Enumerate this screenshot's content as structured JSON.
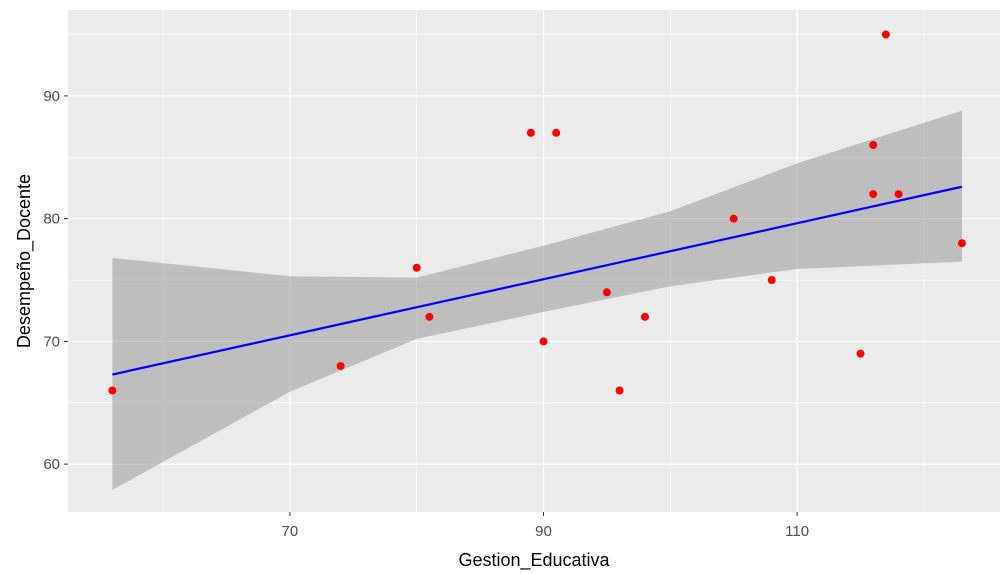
{
  "chart_data": {
    "type": "scatter",
    "xlabel": "Gestion_Educativa",
    "ylabel": "Desempeño_Docente",
    "xlim": [
      52.5,
      126
    ],
    "ylim": [
      56.1,
      97.0
    ],
    "x_ticks": [
      70,
      90,
      110
    ],
    "y_ticks": [
      60,
      70,
      80,
      90
    ],
    "x_tick_labels": [
      "70",
      "90",
      "110"
    ],
    "y_tick_labels": [
      "60",
      "70",
      "80",
      "90"
    ],
    "grid": true,
    "points": [
      {
        "x": 56,
        "y": 66
      },
      {
        "x": 74,
        "y": 68
      },
      {
        "x": 80,
        "y": 76
      },
      {
        "x": 81,
        "y": 72
      },
      {
        "x": 89,
        "y": 87
      },
      {
        "x": 90,
        "y": 70
      },
      {
        "x": 91,
        "y": 87
      },
      {
        "x": 95,
        "y": 74
      },
      {
        "x": 96,
        "y": 66
      },
      {
        "x": 98,
        "y": 72
      },
      {
        "x": 105,
        "y": 80
      },
      {
        "x": 108,
        "y": 75
      },
      {
        "x": 115,
        "y": 69
      },
      {
        "x": 116,
        "y": 86
      },
      {
        "x": 116,
        "y": 82
      },
      {
        "x": 117,
        "y": 95
      },
      {
        "x": 118,
        "y": 82
      },
      {
        "x": 123,
        "y": 78
      }
    ],
    "regression": {
      "x": [
        56,
        123
      ],
      "y": [
        67.3,
        82.6
      ]
    },
    "confidence_band": {
      "x": [
        56,
        70,
        80,
        90,
        100,
        110,
        123
      ],
      "lower": [
        57.9,
        65.9,
        70.2,
        72.4,
        74.5,
        75.9,
        76.5
      ],
      "upper": [
        76.8,
        75.3,
        75.2,
        77.8,
        80.6,
        84.5,
        88.8
      ]
    },
    "colors": {
      "panel_background": "#ebebeb",
      "grid_major": "#ffffff",
      "points": "#ff0000",
      "line": "#0000ff",
      "band": "#999999"
    }
  }
}
